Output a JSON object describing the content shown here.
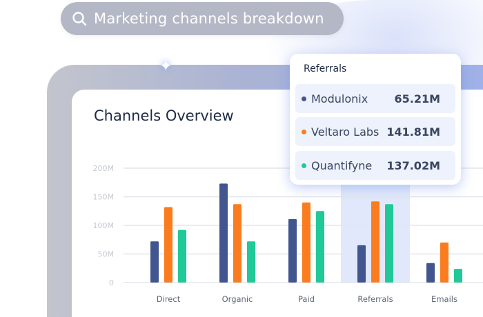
{
  "search": {
    "query": "Marketing channels breakdown",
    "icon": "search-icon"
  },
  "card": {
    "title": "Channels Overview"
  },
  "tooltip": {
    "category": "Referrals",
    "rows": [
      {
        "name": "Modulonix",
        "value": "65.21M",
        "color": "#41558f"
      },
      {
        "name": "Veltaro Labs",
        "value": "141.81M",
        "color": "#fb7c1e"
      },
      {
        "name": "Quantifyne",
        "value": "137.02M",
        "color": "#20c997"
      }
    ]
  },
  "chart_data": {
    "type": "bar",
    "title": "Channels Overview",
    "categories": [
      "Direct",
      "Organic",
      "Paid",
      "Referrals",
      "Emails"
    ],
    "series": [
      {
        "name": "Modulonix",
        "color": "#41558f",
        "values": [
          72,
          173,
          111,
          65.21,
          34
        ]
      },
      {
        "name": "Veltaro Labs",
        "color": "#fb7c1e",
        "values": [
          132,
          137,
          140,
          141.81,
          70
        ]
      },
      {
        "name": "Quantifyne",
        "color": "#20c997",
        "values": [
          92,
          72,
          125,
          137.02,
          24
        ]
      }
    ],
    "yticks": [
      "0",
      "50M",
      "100M",
      "150M",
      "200M"
    ],
    "ylim": [
      0,
      200
    ],
    "grid": true,
    "highlighted_category": "Referrals"
  }
}
